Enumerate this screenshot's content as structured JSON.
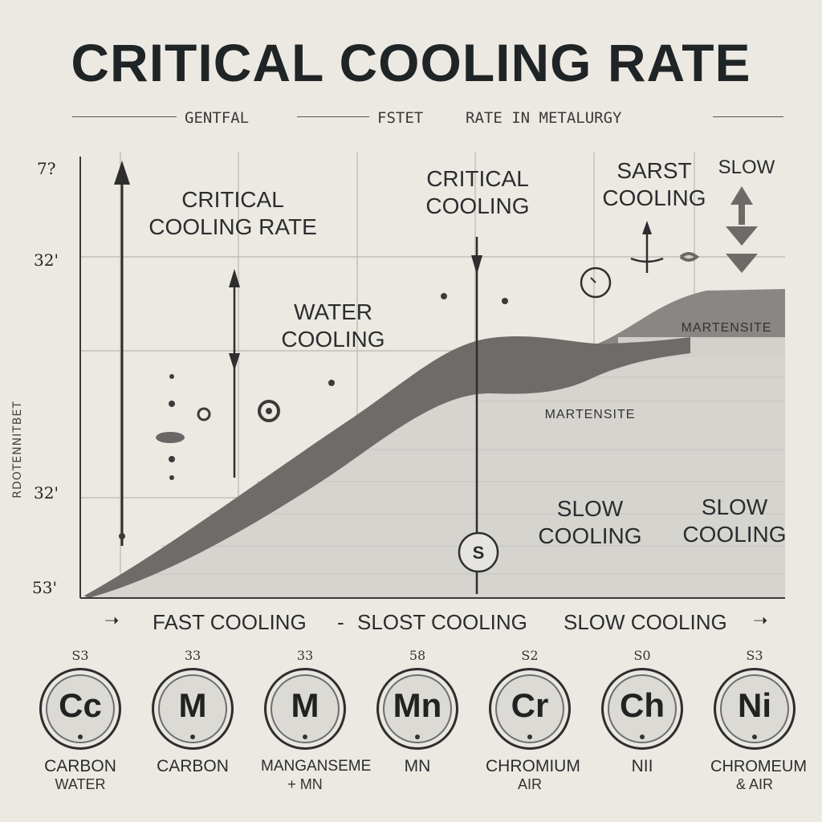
{
  "title": "CRITICAL COOLING RATE",
  "subtitle": {
    "part1": "GENTFAL",
    "part2": "FSTET",
    "part3": "RATE IN METALURGY"
  },
  "y_ticks": [
    "7?",
    "32'",
    "32'",
    "53'"
  ],
  "y_axis_label": "RDOTENNITBET",
  "annotations": {
    "critical_cooling_rate": "CRITICAL\nCOOLING RATE",
    "water_cooling": "WATER\nCOOLING",
    "critical_cooling": "CRITICAL\nCOOLING",
    "sarst_cooling": "SARST\nCOOLING",
    "slow_top": "SLOW",
    "martensite_upper": "MARTENSITE",
    "martensite_lower": "MARTENSITE",
    "slow_cooling_1": "SLOW\nCOOLING",
    "slow_cooling_2": "SLOW\nCOOLING",
    "marker_symbol": "S"
  },
  "bottom_axis": {
    "fast": "FAST COOLING",
    "dash": "-",
    "slost": "SLOST COOLING",
    "slow": "SLOW COOLING"
  },
  "elements": [
    {
      "number": "S3",
      "symbol": "Cc",
      "name": "CARBON",
      "sub": "WATER"
    },
    {
      "number": "33",
      "symbol": "M",
      "name": "CARBON",
      "sub": ""
    },
    {
      "number": "33",
      "symbol": "M",
      "name": "MANGANSEME",
      "sub": "+ MN"
    },
    {
      "number": "58",
      "symbol": "Mn",
      "name": "MN",
      "sub": ""
    },
    {
      "number": "S2",
      "symbol": "Cr",
      "name": "CHROMIUM",
      "sub": "AIR"
    },
    {
      "number": "S0",
      "symbol": "Ch",
      "name": "NII",
      "sub": ""
    },
    {
      "number": "S3",
      "symbol": "Ni",
      "name": "CHROMEUM",
      "sub": "& AIR"
    }
  ],
  "colors": {
    "background": "#ece9e2",
    "curve_band": "#6f6b69",
    "fill_area": "#d7d5d0",
    "grid": "#b9b7b2",
    "ink": "#2a2d2f"
  },
  "icons": [
    "arrow-up-icon",
    "arrow-down-icon",
    "double-arrow-icon",
    "circle-marker-icon",
    "arrow-right-icon"
  ]
}
